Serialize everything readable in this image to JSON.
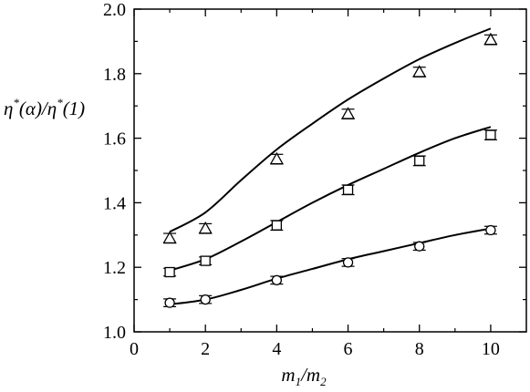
{
  "chart_data": {
    "type": "scatter",
    "xlabel": "m1/m2",
    "ylabel": "η*(α)/η*(1)",
    "xlabel_parts": {
      "m": "m",
      "sub1": "1",
      "slash": "/",
      "m2": "m",
      "sub2": "2"
    },
    "ylabel_parts": {
      "eta": "η",
      "star": "*",
      "arg": "(α)/",
      "eta2": "η",
      "star2": "*",
      "arg2": "(1)"
    },
    "xlim": [
      0,
      11
    ],
    "ylim": [
      1.0,
      2.0
    ],
    "x_ticks": [
      0,
      2,
      4,
      6,
      8,
      10
    ],
    "y_ticks": [
      1.0,
      1.2,
      1.4,
      1.6,
      1.8,
      2.0
    ],
    "x_tick_labels": [
      "0",
      "2",
      "4",
      "6",
      "8",
      "10"
    ],
    "y_tick_labels": [
      "1.0",
      "1.2",
      "1.4",
      "1.6",
      "1.8",
      "2.0"
    ],
    "grid": false,
    "series": [
      {
        "marker": "triangle",
        "x": [
          1,
          2,
          4,
          6,
          8,
          10
        ],
        "y": [
          1.29,
          1.32,
          1.535,
          1.675,
          1.805,
          1.905
        ],
        "err": [
          0.015,
          0.015,
          0.015,
          0.015,
          0.015,
          0.015
        ],
        "curve": {
          "x": [
            1,
            2,
            3,
            4,
            5,
            6,
            7,
            8,
            9,
            10
          ],
          "y": [
            1.31,
            1.37,
            1.47,
            1.565,
            1.645,
            1.72,
            1.785,
            1.845,
            1.895,
            1.94
          ]
        }
      },
      {
        "marker": "square",
        "x": [
          1,
          2,
          4,
          6,
          8,
          10
        ],
        "y": [
          1.185,
          1.22,
          1.33,
          1.44,
          1.53,
          1.61
        ],
        "err": [
          0.012,
          0.012,
          0.015,
          0.015,
          0.015,
          0.015
        ],
        "curve": {
          "x": [
            1,
            2,
            3,
            4,
            5,
            6,
            7,
            8,
            9,
            10
          ],
          "y": [
            1.19,
            1.225,
            1.28,
            1.34,
            1.4,
            1.455,
            1.505,
            1.555,
            1.6,
            1.635
          ]
        }
      },
      {
        "marker": "circle",
        "x": [
          1,
          2,
          4,
          6,
          8,
          10
        ],
        "y": [
          1.09,
          1.1,
          1.16,
          1.215,
          1.265,
          1.315
        ],
        "err": [
          0.012,
          0.012,
          0.012,
          0.012,
          0.012,
          0.012
        ],
        "curve": {
          "x": [
            1,
            2,
            3,
            4,
            5,
            6,
            7,
            8,
            9,
            10
          ],
          "y": [
            1.085,
            1.1,
            1.13,
            1.165,
            1.195,
            1.225,
            1.25,
            1.275,
            1.3,
            1.32
          ]
        }
      }
    ]
  }
}
